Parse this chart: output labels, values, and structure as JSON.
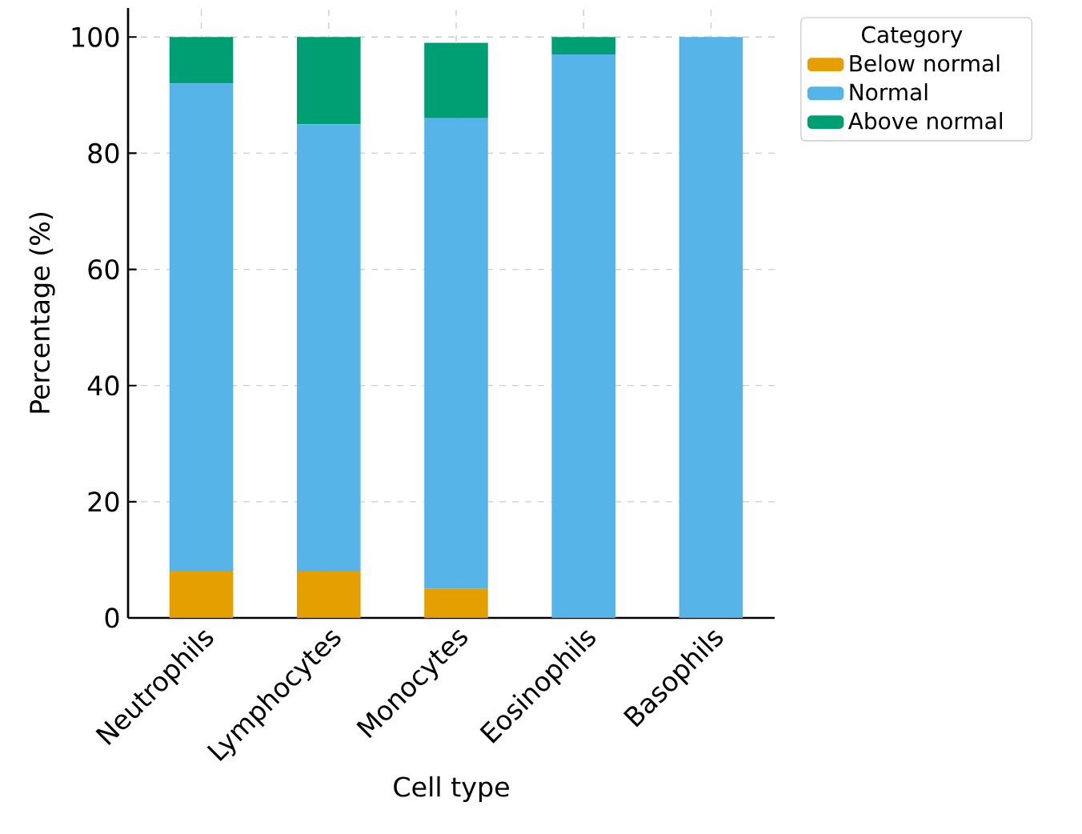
{
  "chart_data": {
    "type": "bar",
    "stacked": true,
    "xlabel": "Cell type",
    "ylabel": "Percentage (%)",
    "legend_title": "Category",
    "categories": [
      "Neutrophils",
      "Lymphocytes",
      "Monocytes",
      "Eosinophils",
      "Basophils"
    ],
    "series": [
      {
        "name": "Below normal",
        "color": "#e69f00",
        "values": [
          8,
          8,
          5,
          0,
          0
        ]
      },
      {
        "name": "Normal",
        "color": "#56b4e9",
        "values": [
          84,
          77,
          81,
          97,
          100
        ]
      },
      {
        "name": "Above normal",
        "color": "#009e73",
        "values": [
          8,
          15,
          13,
          3,
          0
        ]
      }
    ],
    "ylim": [
      0,
      105
    ],
    "yticks": [
      0,
      20,
      40,
      60,
      80,
      100
    ],
    "grid": true,
    "legend": "right"
  }
}
